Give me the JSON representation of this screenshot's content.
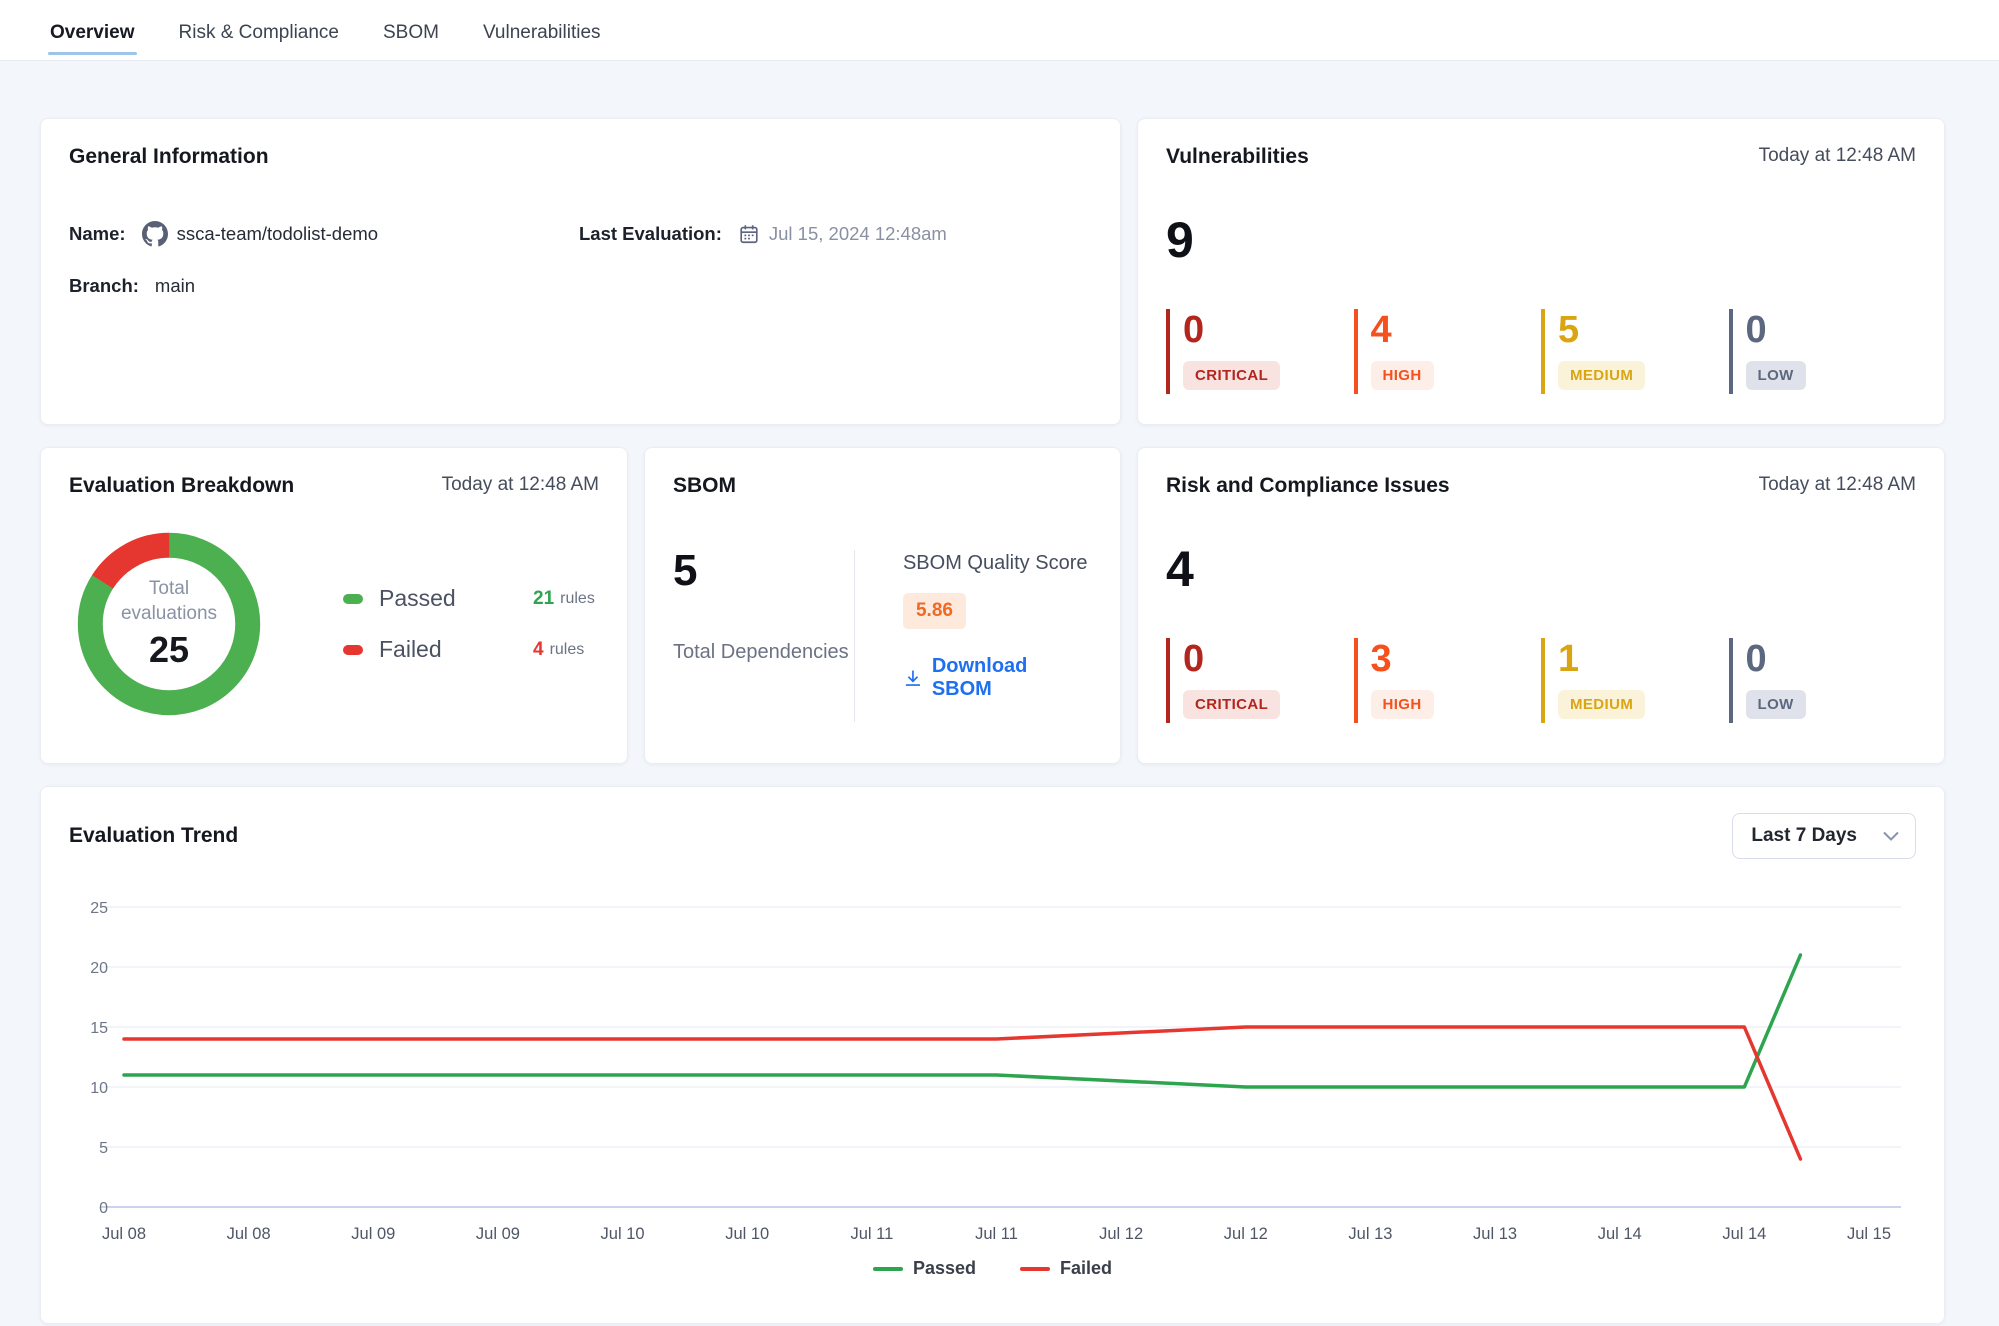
{
  "tabs": [
    {
      "label": "Overview",
      "active": true
    },
    {
      "label": "Risk & Compliance",
      "active": false
    },
    {
      "label": "SBOM",
      "active": false
    },
    {
      "label": "Vulnerabilities",
      "active": false
    }
  ],
  "general_info": {
    "title": "General Information",
    "name_label": "Name:",
    "name_value": "ssca-team/todolist-demo",
    "branch_label": "Branch:",
    "branch_value": "main",
    "last_eval_label": "Last Evaluation:",
    "last_eval_value": "Jul 15, 2024 12:48am"
  },
  "vulnerabilities": {
    "title": "Vulnerabilities",
    "timestamp": "Today at 12:48 AM",
    "total": "9",
    "severities": [
      {
        "label": "CRITICAL",
        "count": "0",
        "color": "#b3261e",
        "badge_bg": "#f8e3e1"
      },
      {
        "label": "HIGH",
        "count": "4",
        "color": "#f4511e",
        "badge_bg": "#fdeee8"
      },
      {
        "label": "MEDIUM",
        "count": "5",
        "color": "#d9a514",
        "badge_bg": "#fbf3d9"
      },
      {
        "label": "LOW",
        "count": "0",
        "color": "#5c6880",
        "badge_bg": "#dfe2ea"
      }
    ]
  },
  "evaluation_breakdown": {
    "title": "Evaluation Breakdown",
    "timestamp": "Today at 12:48 AM",
    "center_label": "Total evaluations",
    "center_value": "25",
    "passed_label": "Passed",
    "passed_count": "21",
    "passed_unit": "rules",
    "failed_label": "Failed",
    "failed_count": "4",
    "failed_unit": "rules"
  },
  "sbom": {
    "title": "SBOM",
    "total_value": "5",
    "total_label": "Total Dependencies",
    "score_label": "SBOM Quality Score",
    "score_value": "5.86",
    "download_label": "Download SBOM"
  },
  "risk_compliance": {
    "title": "Risk and Compliance Issues",
    "timestamp": "Today at 12:48 AM",
    "total": "4",
    "severities": [
      {
        "label": "CRITICAL",
        "count": "0",
        "color": "#b3261e",
        "badge_bg": "#f8e3e1"
      },
      {
        "label": "HIGH",
        "count": "3",
        "color": "#f4511e",
        "badge_bg": "#fdeee8"
      },
      {
        "label": "MEDIUM",
        "count": "1",
        "color": "#d9a514",
        "badge_bg": "#fbf3d9"
      },
      {
        "label": "LOW",
        "count": "0",
        "color": "#5c6880",
        "badge_bg": "#dfe2ea"
      }
    ]
  },
  "trend": {
    "title": "Evaluation Trend",
    "range_selector": "Last 7 Days",
    "legend": [
      {
        "label": "Passed",
        "color": "#2da44e"
      },
      {
        "label": "Failed",
        "color": "#e5372f"
      }
    ]
  },
  "chart_data": [
    {
      "type": "pie",
      "subtype": "donut",
      "title": "Evaluation Breakdown",
      "labels": [
        "Passed",
        "Failed"
      ],
      "values": [
        21,
        4
      ],
      "colors": [
        "#4caf50",
        "#e5372f"
      ],
      "center_label": "Total evaluations",
      "center_value": 25,
      "start_angle": "top",
      "direction": "clockwise"
    },
    {
      "type": "line",
      "title": "Evaluation Trend",
      "x_tick_labels": [
        "Jul 08",
        "Jul 08",
        "Jul 09",
        "Jul 09",
        "Jul 10",
        "Jul 10",
        "Jul 11",
        "Jul 11",
        "Jul 12",
        "Jul 12",
        "Jul 13",
        "Jul 13",
        "Jul 14",
        "Jul 14",
        "Jul 15"
      ],
      "y_ticks": [
        0,
        5,
        10,
        15,
        20,
        25
      ],
      "ylim": [
        0,
        25
      ],
      "grid": true,
      "legend_position": "bottom",
      "series": [
        {
          "name": "Passed",
          "color": "#2da44e",
          "x": [
            0,
            1,
            2,
            3,
            4,
            5,
            6,
            7,
            8,
            9,
            10,
            11,
            12,
            13,
            13.45
          ],
          "values": [
            11,
            11,
            11,
            11,
            11,
            11,
            11,
            11,
            10.5,
            10,
            10,
            10,
            10,
            10,
            21
          ]
        },
        {
          "name": "Failed",
          "color": "#e5372f",
          "x": [
            0,
            1,
            2,
            3,
            4,
            5,
            6,
            7,
            8,
            9,
            10,
            11,
            12,
            13,
            13.45
          ],
          "values": [
            14,
            14,
            14,
            14,
            14,
            14,
            14,
            14,
            14.5,
            15,
            15,
            15,
            15,
            15,
            4
          ]
        }
      ]
    }
  ]
}
